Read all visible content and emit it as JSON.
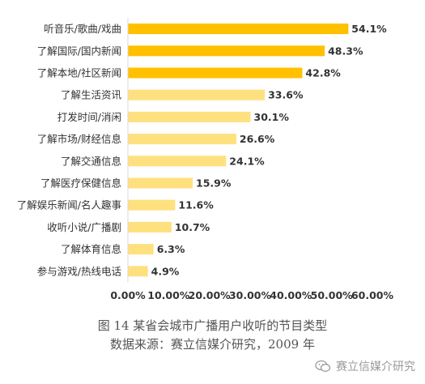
{
  "chart_data": {
    "type": "bar",
    "orientation": "horizontal",
    "categories": [
      "听音乐/歌曲/戏曲",
      "了解国际/国内新闻",
      "了解本地/社区新闻",
      "了解生活资讯",
      "打发时间/消闲",
      "了解市场/财经信息",
      "了解交通信息",
      "了解医疗保健信息",
      "了解娱乐新闻/名人趣事",
      "收听小说/广播剧",
      "了解体育信息",
      "参与游戏/热线电话"
    ],
    "values": [
      54.1,
      48.3,
      42.8,
      33.6,
      30.1,
      26.6,
      24.1,
      15.9,
      11.6,
      10.7,
      6.3,
      4.9
    ],
    "value_labels": [
      "54.1%",
      "48.3%",
      "42.8%",
      "33.6%",
      "30.1%",
      "26.6%",
      "24.1%",
      "15.9%",
      "11.6%",
      "10.7%",
      "6.3%",
      "4.9%"
    ],
    "highlight_count": 3,
    "xlim": [
      0,
      60
    ],
    "x_ticks": [
      0,
      10,
      20,
      30,
      40,
      50,
      60
    ],
    "x_tick_labels": [
      "0.00%",
      "10.00%",
      "20.00%",
      "30.00%",
      "40.00%",
      "50.00%",
      "60.00%"
    ],
    "grid": false,
    "colors": {
      "highlight": "#FFC000",
      "normal": "#FFE07F"
    }
  },
  "caption": {
    "title": "图 14    某省会城市广播用户收听的节目类型",
    "source": "数据来源：赛立信媒介研究，2009 年"
  },
  "watermark": {
    "text": "赛立信媒介研究",
    "icon": "wechat-icon"
  }
}
